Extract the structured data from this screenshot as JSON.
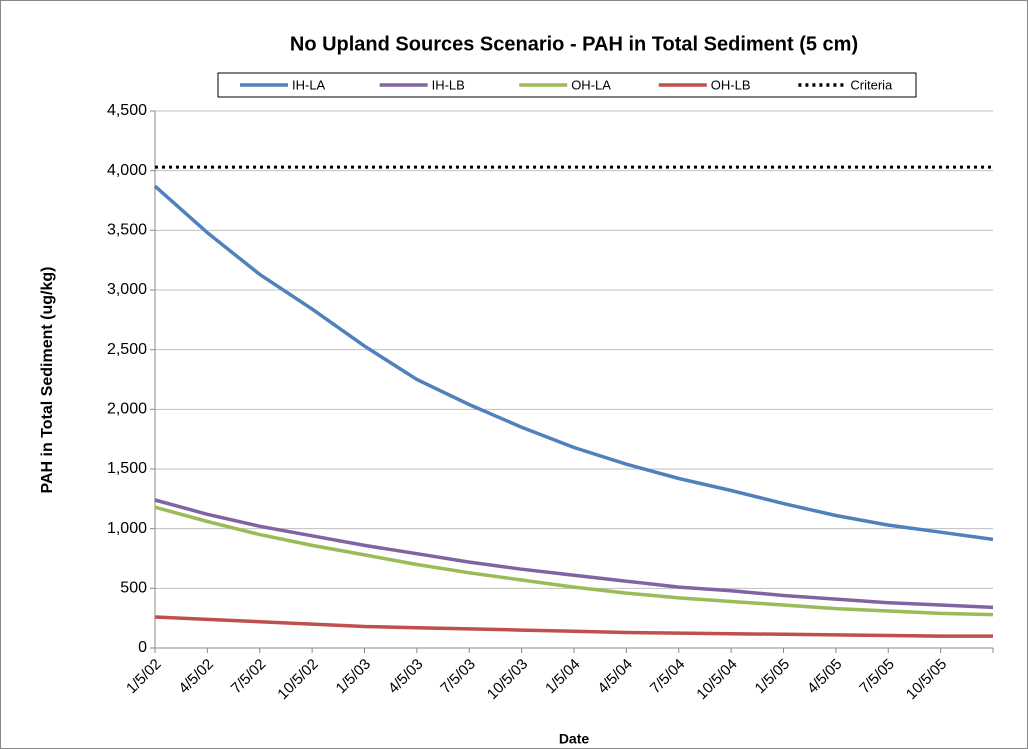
{
  "chart_data": {
    "type": "line",
    "title": "No Upland Sources Scenario - PAH in Total Sediment (5 cm)",
    "x_label": "Date",
    "y_label": "PAH in Total Sediment (ug/kg)",
    "categories": [
      "1/5/02",
      "4/5/02",
      "7/5/02",
      "10/5/02",
      "1/5/03",
      "4/5/03",
      "7/5/03",
      "10/5/03",
      "1/5/04",
      "4/5/04",
      "7/5/04",
      "10/5/04",
      "1/5/05",
      "4/5/05",
      "7/5/05",
      "10/5/05",
      null
    ],
    "series": [
      {
        "name": "IH-LA",
        "color": "#4f81bd",
        "style": "solid",
        "values": [
          3870,
          3480,
          3130,
          2840,
          2530,
          2250,
          2040,
          1850,
          1680,
          1540,
          1420,
          1320,
          1210,
          1110,
          1030,
          970,
          910
        ]
      },
      {
        "name": "IH-LB",
        "color": "#8064a2",
        "style": "solid",
        "values": [
          1240,
          1120,
          1020,
          940,
          860,
          790,
          720,
          660,
          610,
          560,
          510,
          480,
          440,
          410,
          380,
          360,
          340
        ]
      },
      {
        "name": "OH-LA",
        "color": "#9bbb59",
        "style": "solid",
        "values": [
          1180,
          1060,
          950,
          860,
          780,
          700,
          630,
          570,
          510,
          460,
          420,
          390,
          360,
          330,
          310,
          290,
          280
        ]
      },
      {
        "name": "OH-LB",
        "color": "#c0504d",
        "style": "solid",
        "values": [
          260,
          240,
          220,
          200,
          180,
          170,
          160,
          150,
          140,
          130,
          125,
          120,
          115,
          110,
          105,
          100,
          100
        ]
      },
      {
        "name": "Criteria",
        "color": "#000000",
        "style": "dotted",
        "values": [
          4030,
          4030,
          4030,
          4030,
          4030,
          4030,
          4030,
          4030,
          4030,
          4030,
          4030,
          4030,
          4030,
          4030,
          4030,
          4030,
          4030
        ]
      }
    ],
    "ylim": [
      0,
      4500
    ],
    "yticks": [
      0,
      500,
      {
        "value": 1000,
        "label": "1,000"
      },
      {
        "value": 1500,
        "label": "1,500"
      },
      {
        "value": 2000,
        "label": "2,000"
      },
      {
        "value": 2500,
        "label": "2,500"
      },
      {
        "value": 3000,
        "label": "3,000"
      },
      {
        "value": 3500,
        "label": "3,500"
      },
      {
        "value": 4000,
        "label": "4,000"
      },
      {
        "value": 4500,
        "label": "4,500"
      }
    ],
    "grid": true,
    "legend": "top"
  }
}
